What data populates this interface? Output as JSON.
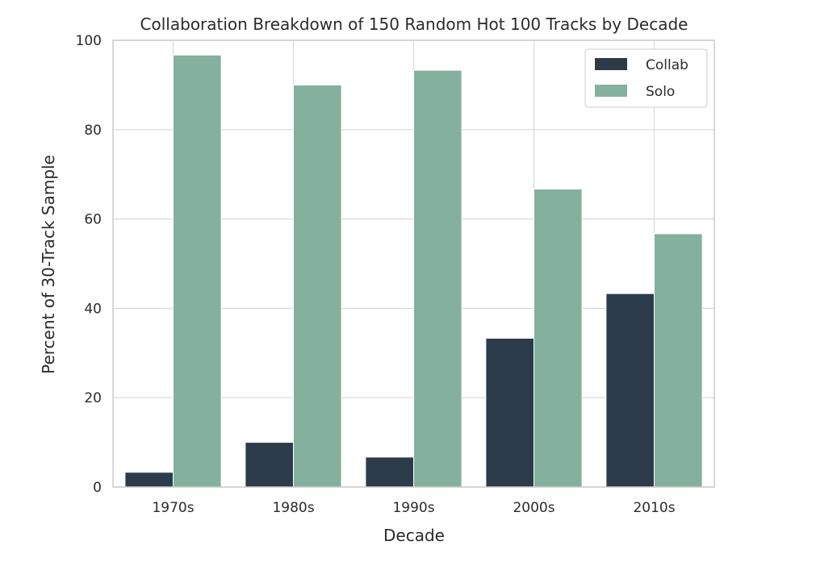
{
  "chart_data": {
    "type": "bar",
    "title": "Collaboration Breakdown of 150 Random Hot 100 Tracks by Decade",
    "xlabel": "Decade",
    "ylabel": "Percent of 30-Track Sample",
    "categories": [
      "1970s",
      "1980s",
      "1990s",
      "2000s",
      "2010s"
    ],
    "series": [
      {
        "name": "Collab",
        "color": "#2b3b4a",
        "values": [
          3.3,
          10.0,
          6.7,
          33.3,
          43.3
        ]
      },
      {
        "name": "Solo",
        "color": "#84b09e",
        "values": [
          96.7,
          90.0,
          93.3,
          66.7,
          56.7
        ]
      }
    ],
    "ylim": [
      0,
      100
    ],
    "yticks": [
      0,
      20,
      40,
      60,
      80,
      100
    ],
    "grid": true,
    "legend_position": "top-right"
  }
}
